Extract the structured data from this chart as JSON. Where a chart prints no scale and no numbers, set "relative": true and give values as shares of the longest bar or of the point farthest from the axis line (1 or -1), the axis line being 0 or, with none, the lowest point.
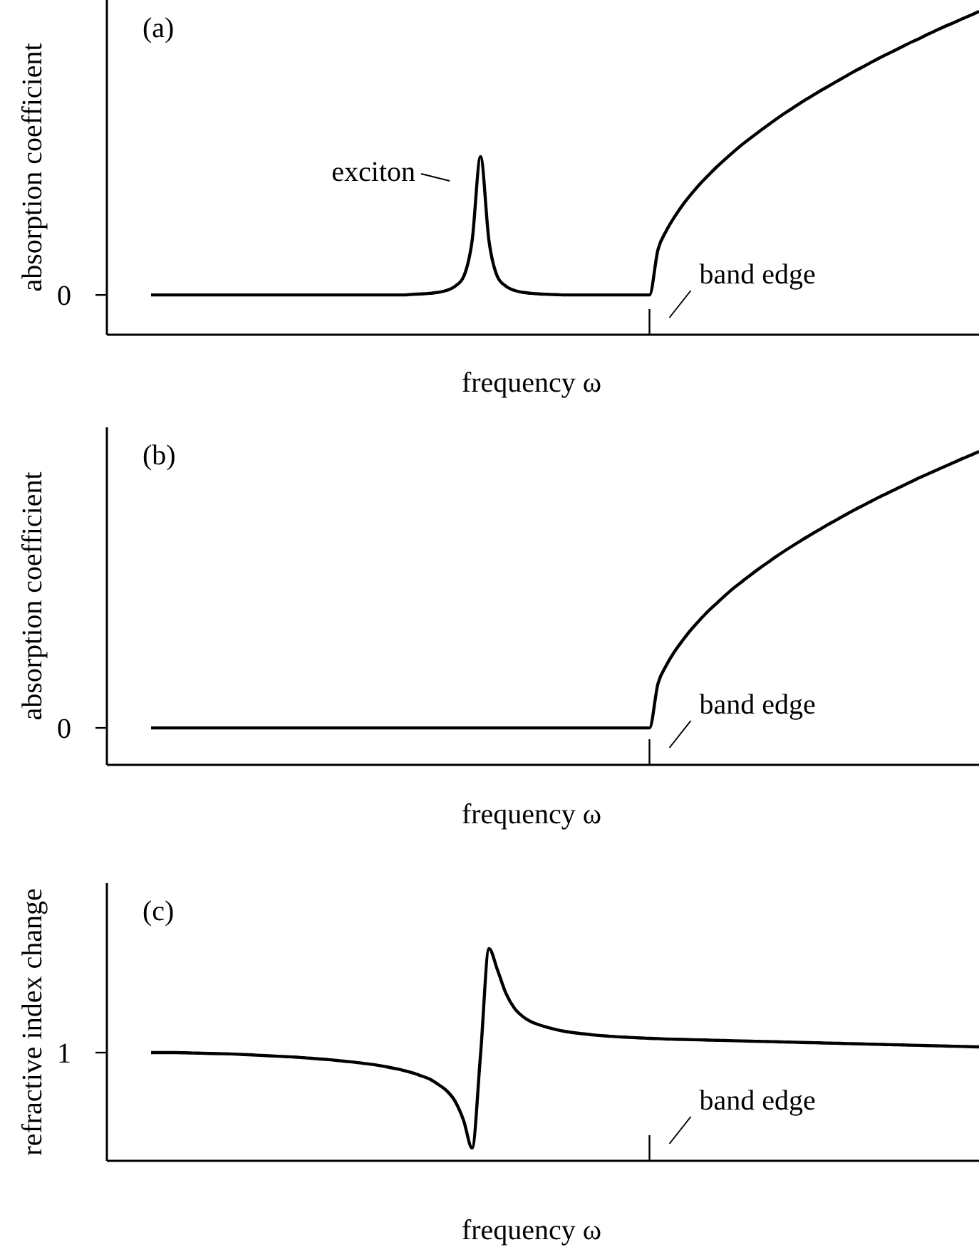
{
  "chart_data": [
    {
      "type": "line",
      "title": "(a)",
      "xlabel": "frequency ω",
      "ylabel": "absorption coefficient",
      "relative": true,
      "color": "#000000",
      "marker": "none",
      "line_style": "solid",
      "categories": [
        null,
        null,
        null,
        null,
        null,
        null,
        null,
        null,
        null,
        null,
        null,
        null,
        null,
        null,
        null,
        null,
        null,
        null,
        null,
        null,
        null,
        null,
        null,
        null,
        null,
        null,
        null,
        null,
        null,
        null,
        null,
        null,
        null,
        null,
        null,
        null,
        null,
        null,
        null,
        null,
        null,
        null,
        null,
        null,
        null,
        null,
        null,
        null,
        null,
        null,
        null,
        null,
        null,
        null,
        null,
        null,
        null,
        null,
        null,
        null,
        null,
        null,
        null,
        null,
        null,
        null,
        null,
        null,
        null,
        null,
        null,
        null,
        null,
        null,
        null,
        null,
        null,
        null,
        null,
        null,
        null,
        null,
        null,
        null,
        null,
        null,
        null,
        null,
        null,
        null,
        null,
        null,
        null,
        null,
        null,
        null,
        null,
        null,
        null
      ],
      "values": [
        0.123,
        0.123,
        0.123,
        0.123,
        0.123,
        0.123,
        0.123,
        0.123,
        0.123,
        0.123,
        0.123,
        0.123,
        0.123,
        0.123,
        0.123,
        0.123,
        0.123,
        0.123,
        0.123,
        0.123,
        0.123,
        0.123,
        0.123,
        0.123,
        0.123,
        0.123,
        0.123,
        0.123,
        0.123,
        0.123,
        0.123,
        0.125,
        0.126,
        0.128,
        0.131,
        0.137,
        0.15,
        0.18,
        0.29,
        0.551,
        0.29,
        0.18,
        0.15,
        0.137,
        0.131,
        0.128,
        0.126,
        0.125,
        0.124,
        0.123,
        0.123,
        0.123,
        0.123,
        0.123,
        0.123,
        0.123,
        0.123,
        0.123,
        0.123,
        0.123,
        0.263,
        0.322,
        0.366,
        0.404,
        0.437,
        0.467,
        0.494,
        0.52,
        0.544,
        0.567,
        0.589,
        0.609,
        0.629,
        0.648,
        0.667,
        0.685,
        0.702,
        0.719,
        0.735,
        0.751,
        0.766,
        0.781,
        0.796,
        0.811,
        0.825,
        0.839,
        0.853,
        0.866,
        0.879,
        0.892,
        0.905,
        0.917,
        0.93,
        0.942,
        0.954,
        0.965,
        0.977,
        0.988,
        1.0
      ],
      "annotations": [
        "0",
        "exciton",
        "band edge"
      ]
    },
    {
      "type": "line",
      "title": "(b)",
      "xlabel": "frequency ω",
      "ylabel": "absorption coefficient",
      "relative": true,
      "color": "#000000",
      "marker": "none",
      "line_style": "solid",
      "categories": [
        null,
        null,
        null,
        null,
        null,
        null,
        null,
        null,
        null,
        null,
        null,
        null,
        null,
        null,
        null,
        null,
        null,
        null,
        null,
        null,
        null,
        null,
        null,
        null,
        null,
        null,
        null,
        null,
        null,
        null,
        null,
        null,
        null,
        null,
        null,
        null,
        null,
        null,
        null,
        null,
        null,
        null,
        null,
        null,
        null,
        null,
        null,
        null,
        null,
        null,
        null,
        null,
        null,
        null,
        null,
        null,
        null,
        null,
        null,
        null,
        null,
        null,
        null,
        null,
        null,
        null,
        null,
        null,
        null,
        null,
        null,
        null,
        null,
        null,
        null,
        null,
        null,
        null,
        null,
        null,
        null,
        null,
        null,
        null,
        null,
        null,
        null,
        null,
        null,
        null,
        null,
        null,
        null,
        null,
        null,
        null,
        null,
        null,
        null
      ],
      "values": [
        0.118,
        0.118,
        0.118,
        0.118,
        0.118,
        0.118,
        0.118,
        0.118,
        0.118,
        0.118,
        0.118,
        0.118,
        0.118,
        0.118,
        0.118,
        0.118,
        0.118,
        0.118,
        0.118,
        0.118,
        0.118,
        0.118,
        0.118,
        0.118,
        0.118,
        0.118,
        0.118,
        0.118,
        0.118,
        0.118,
        0.118,
        0.118,
        0.118,
        0.118,
        0.118,
        0.118,
        0.118,
        0.118,
        0.118,
        0.118,
        0.118,
        0.118,
        0.118,
        0.118,
        0.118,
        0.118,
        0.118,
        0.118,
        0.118,
        0.118,
        0.118,
        0.118,
        0.118,
        0.118,
        0.118,
        0.118,
        0.118,
        0.118,
        0.118,
        0.118,
        0.259,
        0.318,
        0.363,
        0.4,
        0.434,
        0.464,
        0.492,
        0.517,
        0.542,
        0.565,
        0.586,
        0.607,
        0.627,
        0.646,
        0.665,
        0.683,
        0.7,
        0.717,
        0.733,
        0.749,
        0.765,
        0.78,
        0.795,
        0.81,
        0.824,
        0.838,
        0.852,
        0.865,
        0.878,
        0.891,
        0.904,
        0.917,
        0.929,
        0.941,
        0.953,
        0.965,
        0.977,
        0.988,
        1.0
      ],
      "annotations": [
        "0",
        "band edge"
      ]
    },
    {
      "type": "line",
      "title": "(c)",
      "xlabel": "frequency ω",
      "ylabel": "refractive index change",
      "relative": true,
      "color": "#000000",
      "marker": "none",
      "line_style": "solid",
      "categories": [
        null,
        null,
        null,
        null,
        null,
        null,
        null,
        null,
        null,
        null,
        null,
        null,
        null,
        null,
        null,
        null,
        null,
        null,
        null,
        null,
        null,
        null,
        null,
        null,
        null,
        null,
        null,
        null,
        null,
        null,
        null,
        null,
        null,
        null,
        null,
        null,
        null,
        null,
        null,
        null,
        null,
        null,
        null,
        null,
        null,
        null,
        null,
        null,
        null,
        null,
        null,
        null,
        null,
        null,
        null,
        null,
        null,
        null,
        null,
        null,
        null,
        null,
        null,
        null,
        null,
        null,
        null,
        null,
        null,
        null,
        null,
        null,
        null,
        null,
        null,
        null,
        null,
        null,
        null,
        null,
        null,
        null,
        null,
        null,
        null,
        null,
        null,
        null,
        null,
        null,
        null,
        null,
        null,
        null,
        null,
        null,
        null,
        null,
        null
      ],
      "values": [
        0.51,
        0.51,
        0.51,
        0.51,
        0.509,
        0.508,
        0.507,
        0.506,
        0.505,
        0.504,
        0.503,
        0.501,
        0.499,
        0.497,
        0.495,
        0.493,
        0.491,
        0.489,
        0.486,
        0.483,
        0.48,
        0.477,
        0.473,
        0.469,
        0.465,
        0.46,
        0.455,
        0.449,
        0.442,
        0.434,
        0.425,
        0.414,
        0.4,
        0.385,
        0.36,
        0.33,
        0.28,
        0.19,
        0.06,
        0.5,
        1.0,
        0.9,
        0.79,
        0.72,
        0.68,
        0.655,
        0.64,
        0.628,
        0.618,
        0.61,
        0.604,
        0.599,
        0.595,
        0.591,
        0.588,
        0.585,
        0.583,
        0.581,
        0.579,
        0.577,
        0.576,
        0.574,
        0.573,
        0.572,
        0.571,
        0.57,
        0.569,
        0.568,
        0.567,
        0.566,
        0.565,
        0.564,
        0.563,
        0.562,
        0.561,
        0.56,
        0.559,
        0.558,
        0.557,
        0.556,
        0.555,
        0.554,
        0.553,
        0.552,
        0.551,
        0.55,
        0.549,
        0.548,
        0.547,
        0.546,
        0.545,
        0.544,
        0.543,
        0.542,
        0.541,
        0.54,
        0.539,
        0.538,
        0.537
      ],
      "annotations": [
        "1",
        "band edge"
      ]
    }
  ]
}
